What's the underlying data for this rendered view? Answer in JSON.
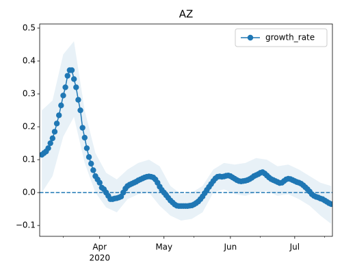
{
  "chart_data": {
    "type": "line",
    "title": "AZ",
    "x": [
      65,
      66,
      67,
      68,
      69,
      70,
      71,
      72,
      73,
      74,
      75,
      76,
      77,
      78,
      79,
      80,
      81,
      82,
      83,
      84,
      85,
      86,
      87,
      88,
      89,
      90,
      91,
      92,
      93,
      94,
      95,
      96,
      97,
      98,
      99,
      100,
      101,
      102,
      103,
      104,
      105,
      106,
      107,
      108,
      109,
      110,
      111,
      112,
      113,
      114,
      115,
      116,
      117,
      118,
      119,
      120,
      121,
      122,
      123,
      124,
      125,
      126,
      127,
      128,
      129,
      130,
      131,
      132,
      133,
      134,
      135,
      136,
      137,
      138,
      139,
      140,
      141,
      142,
      143,
      144,
      145,
      146,
      147,
      148,
      149,
      150,
      151,
      152,
      153,
      154,
      155,
      156,
      157,
      158,
      159,
      160,
      161,
      162,
      163,
      164,
      165,
      166,
      167,
      168,
      169,
      170,
      171,
      172,
      173,
      174,
      175,
      176,
      177,
      178,
      179,
      180,
      181,
      182,
      183,
      184,
      185,
      186,
      187,
      188,
      189,
      190,
      191,
      192,
      193,
      194,
      195,
      196,
      197,
      198,
      199,
      200
    ],
    "series": [
      {
        "name": "growth_rate",
        "color": "#1f77b4",
        "values": [
          0.115,
          0.12,
          0.125,
          0.135,
          0.15,
          0.165,
          0.185,
          0.21,
          0.235,
          0.265,
          0.295,
          0.32,
          0.355,
          0.372,
          0.372,
          0.345,
          0.32,
          0.282,
          0.25,
          0.197,
          0.167,
          0.135,
          0.108,
          0.088,
          0.068,
          0.05,
          0.04,
          0.03,
          0.015,
          0.01,
          0.0,
          -0.01,
          -0.02,
          -0.02,
          -0.018,
          -0.017,
          -0.015,
          -0.012,
          0.0,
          0.012,
          0.02,
          0.024,
          0.027,
          0.03,
          0.033,
          0.037,
          0.04,
          0.043,
          0.046,
          0.048,
          0.049,
          0.048,
          0.046,
          0.04,
          0.03,
          0.018,
          0.008,
          0.0,
          -0.008,
          -0.016,
          -0.024,
          -0.03,
          -0.036,
          -0.04,
          -0.041,
          -0.041,
          -0.041,
          -0.041,
          -0.041,
          -0.04,
          -0.039,
          -0.036,
          -0.032,
          -0.027,
          -0.02,
          -0.012,
          -0.002,
          0.008,
          0.017,
          0.026,
          0.035,
          0.043,
          0.048,
          0.049,
          0.048,
          0.049,
          0.051,
          0.052,
          0.05,
          0.046,
          0.042,
          0.038,
          0.035,
          0.034,
          0.035,
          0.036,
          0.038,
          0.041,
          0.045,
          0.05,
          0.053,
          0.056,
          0.06,
          0.062,
          0.058,
          0.052,
          0.046,
          0.041,
          0.038,
          0.035,
          0.032,
          0.029,
          0.03,
          0.035,
          0.04,
          0.042,
          0.041,
          0.038,
          0.035,
          0.032,
          0.03,
          0.027,
          0.022,
          0.016,
          0.01,
          0.003,
          -0.005,
          -0.01,
          -0.013,
          -0.015,
          -0.018,
          -0.02,
          -0.024,
          -0.028,
          -0.032,
          -0.035
        ]
      }
    ],
    "band": {
      "color": "#1f77b4",
      "x": [
        65,
        70,
        75,
        80,
        85,
        90,
        95,
        100,
        105,
        110,
        115,
        120,
        125,
        130,
        135,
        140,
        145,
        150,
        155,
        160,
        165,
        170,
        175,
        180,
        185,
        190,
        195,
        200
      ],
      "upper": [
        0.25,
        0.28,
        0.42,
        0.46,
        0.25,
        0.12,
        0.06,
        0.04,
        0.07,
        0.09,
        0.1,
        0.08,
        0.02,
        -0.005,
        0.0,
        0.02,
        0.07,
        0.09,
        0.085,
        0.09,
        0.105,
        0.1,
        0.08,
        0.085,
        0.07,
        0.05,
        0.03,
        0.02
      ],
      "lower": [
        0.0,
        0.05,
        0.17,
        0.23,
        0.09,
        0.0,
        -0.045,
        -0.06,
        -0.02,
        -0.005,
        0.0,
        -0.04,
        -0.07,
        -0.085,
        -0.08,
        -0.06,
        0.0,
        0.01,
        -0.005,
        -0.01,
        0.0,
        0.005,
        -0.01,
        -0.005,
        -0.02,
        -0.04,
        -0.07,
        -0.095
      ]
    },
    "hline": {
      "y": 0,
      "color": "#1f77b4",
      "style": "dashed"
    },
    "xlim": [
      64,
      200.6
    ],
    "xticks": [
      {
        "value": 92,
        "label": "Apr"
      },
      {
        "value": 122,
        "label": "May"
      },
      {
        "value": 153,
        "label": "Jun"
      },
      {
        "value": 183,
        "label": "Jul"
      }
    ],
    "x_minor_ticks": [
      75,
      106,
      136,
      167,
      197
    ],
    "x_year_label": "2020",
    "ylim": [
      -0.133,
      0.5125
    ],
    "yticks": [
      {
        "value": -0.1,
        "label": "−0.1"
      },
      {
        "value": 0,
        "label": "0.0"
      },
      0.1,
      0.2,
      0.3,
      0.4,
      0.5
    ],
    "legend": "upper right"
  }
}
